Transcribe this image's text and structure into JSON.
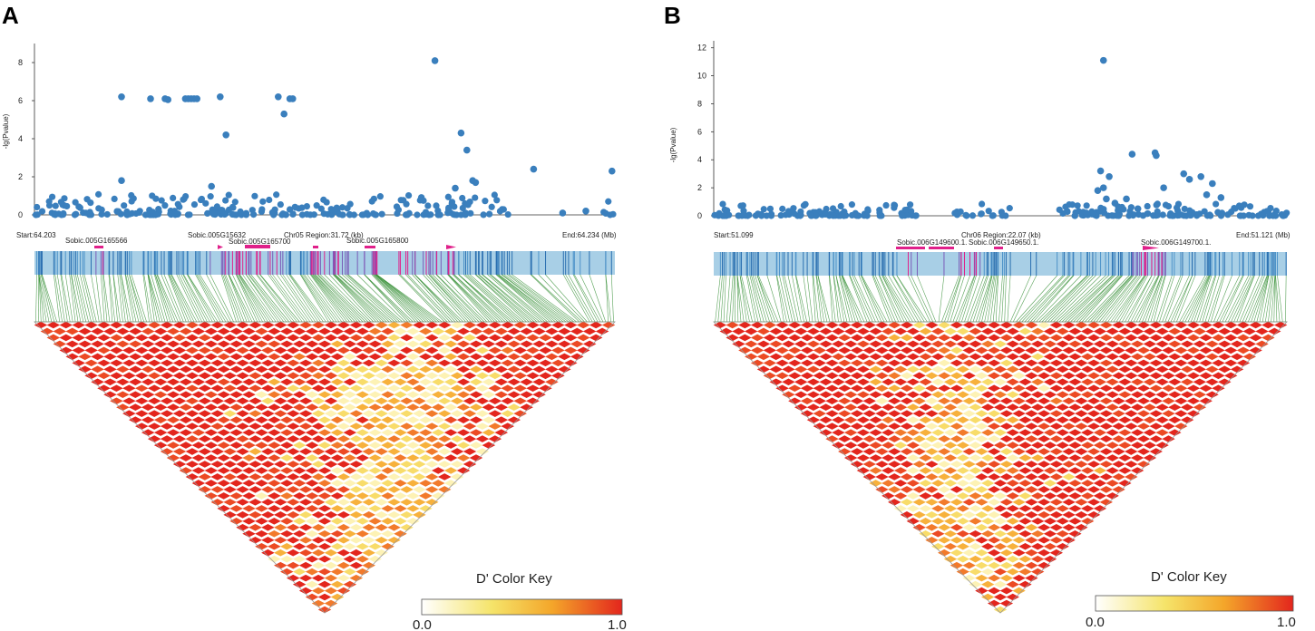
{
  "chart_data": [
    {
      "panel": "A",
      "type": "scatter",
      "ylabel": "-lg(Pvalue)",
      "yticks": [
        "0",
        "2",
        "4",
        "6",
        "8"
      ],
      "ylim": [
        0,
        9
      ],
      "start_label": "Start:64.203",
      "end_label": "End:64.234 (Mb)",
      "region_label": "Chr05 Region:31.72 (kb)",
      "genes": [
        "Sobic.005G165566",
        "Sobic.005G15632",
        "Sobic.005G165700",
        "Sobic.005G165800"
      ],
      "highlight_points": [
        {
          "x": 0.15,
          "y": 6.2
        },
        {
          "x": 0.2,
          "y": 6.1
        },
        {
          "x": 0.225,
          "y": 6.1
        },
        {
          "x": 0.23,
          "y": 6.05
        },
        {
          "x": 0.26,
          "y": 6.1
        },
        {
          "x": 0.265,
          "y": 6.1
        },
        {
          "x": 0.27,
          "y": 6.1
        },
        {
          "x": 0.275,
          "y": 6.1
        },
        {
          "x": 0.28,
          "y": 6.1
        },
        {
          "x": 0.32,
          "y": 6.2
        },
        {
          "x": 0.33,
          "y": 4.2
        },
        {
          "x": 0.305,
          "y": 1.5
        },
        {
          "x": 0.42,
          "y": 6.2
        },
        {
          "x": 0.43,
          "y": 5.3
        },
        {
          "x": 0.44,
          "y": 6.1
        },
        {
          "x": 0.445,
          "y": 6.1
        },
        {
          "x": 0.15,
          "y": 1.8
        },
        {
          "x": 0.69,
          "y": 8.1
        },
        {
          "x": 0.735,
          "y": 4.3
        },
        {
          "x": 0.745,
          "y": 3.4
        },
        {
          "x": 0.755,
          "y": 1.8
        },
        {
          "x": 0.76,
          "y": 1.7
        },
        {
          "x": 0.86,
          "y": 2.4
        },
        {
          "x": 0.995,
          "y": 2.3
        },
        {
          "x": 0.725,
          "y": 1.4
        },
        {
          "x": 0.91,
          "y": 0.1
        },
        {
          "x": 0.95,
          "y": 0.2
        }
      ],
      "color_key": {
        "title": "D' Color Key",
        "min_label": "0.0",
        "max_label": "1.0",
        "colors": [
          "#ffffff",
          "#f5e46a",
          "#f4a62a",
          "#e3261d"
        ]
      }
    },
    {
      "panel": "B",
      "type": "scatter",
      "ylabel": "-lg(Pvalue)",
      "yticks": [
        "0",
        "2",
        "4",
        "6",
        "8",
        "10",
        "12"
      ],
      "ylim": [
        0,
        12.5
      ],
      "start_label": "Start:51.099",
      "end_label": "End:51.121 (Mb)",
      "region_label": "Chr06 Region:22.07 (kb)",
      "genes": [
        "Sobic.006G149600.1.",
        "Sobic.006G149650.1.",
        "Sobic.006G149700.1."
      ],
      "highlight_points": [
        {
          "x": 0.68,
          "y": 11.1
        },
        {
          "x": 0.675,
          "y": 3.2
        },
        {
          "x": 0.68,
          "y": 2.0
        },
        {
          "x": 0.685,
          "y": 1.2
        },
        {
          "x": 0.67,
          "y": 1.8
        },
        {
          "x": 0.69,
          "y": 2.8
        },
        {
          "x": 0.73,
          "y": 4.4
        },
        {
          "x": 0.77,
          "y": 4.5
        },
        {
          "x": 0.772,
          "y": 4.3
        },
        {
          "x": 0.785,
          "y": 2.0
        },
        {
          "x": 0.82,
          "y": 3.0
        },
        {
          "x": 0.83,
          "y": 2.6
        },
        {
          "x": 0.85,
          "y": 2.8
        },
        {
          "x": 0.87,
          "y": 2.3
        },
        {
          "x": 0.885,
          "y": 1.3
        },
        {
          "x": 0.74,
          "y": 0.5
        },
        {
          "x": 0.72,
          "y": 1.2
        },
        {
          "x": 0.7,
          "y": 0.9
        },
        {
          "x": 0.86,
          "y": 1.5
        }
      ],
      "color_key": {
        "title": "D' Color Key",
        "min_label": "0.0",
        "max_label": "1.0",
        "colors": [
          "#ffffff",
          "#f5e46a",
          "#f4a62a",
          "#e3261d"
        ]
      }
    }
  ]
}
